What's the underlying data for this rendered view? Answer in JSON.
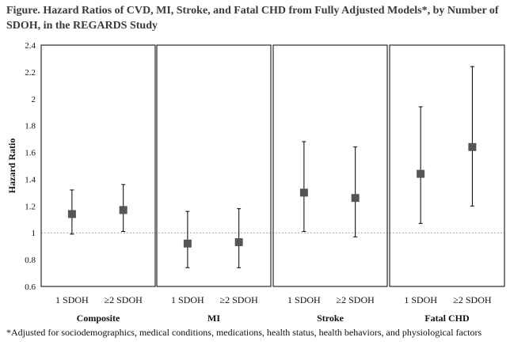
{
  "title": "Figure. Hazard Ratios of CVD, MI, Stroke, and Fatal CHD from Fully Adjusted Models*, by Number of SDOH, in the REGARDS Study",
  "footnote": "*Adjusted for sociodemographics, medical conditions, medications, health status, health behaviors, and physiological factors",
  "chart_data": {
    "type": "scatter",
    "ylabel": "Hazard Ratio",
    "ylim": [
      0.6,
      2.4
    ],
    "yticks": [
      "0.6",
      "0.8",
      "1",
      "1.2",
      "1.4",
      "1.6",
      "1.8",
      "2",
      "2.2",
      "2.4"
    ],
    "reference_line": 1,
    "grid": false,
    "panels": [
      {
        "name": "Composite",
        "points": [
          {
            "label": "1 SDOH",
            "hr": 1.14,
            "lower": 0.99,
            "upper": 1.32
          },
          {
            "label": "≥2 SDOH",
            "hr": 1.17,
            "lower": 1.01,
            "upper": 1.36
          }
        ]
      },
      {
        "name": "MI",
        "points": [
          {
            "label": "1 SDOH",
            "hr": 0.92,
            "lower": 0.74,
            "upper": 1.16
          },
          {
            "label": "≥2 SDOH",
            "hr": 0.93,
            "lower": 0.74,
            "upper": 1.18
          }
        ]
      },
      {
        "name": "Stroke",
        "points": [
          {
            "label": "1 SDOH",
            "hr": 1.3,
            "lower": 1.01,
            "upper": 1.68
          },
          {
            "label": "≥2 SDOH",
            "hr": 1.26,
            "lower": 0.97,
            "upper": 1.64
          }
        ]
      },
      {
        "name": "Fatal CHD",
        "points": [
          {
            "label": "1 SDOH",
            "hr": 1.44,
            "lower": 1.07,
            "upper": 1.94
          },
          {
            "label": "≥2 SDOH",
            "hr": 1.64,
            "lower": 1.2,
            "upper": 2.24
          }
        ]
      }
    ]
  }
}
